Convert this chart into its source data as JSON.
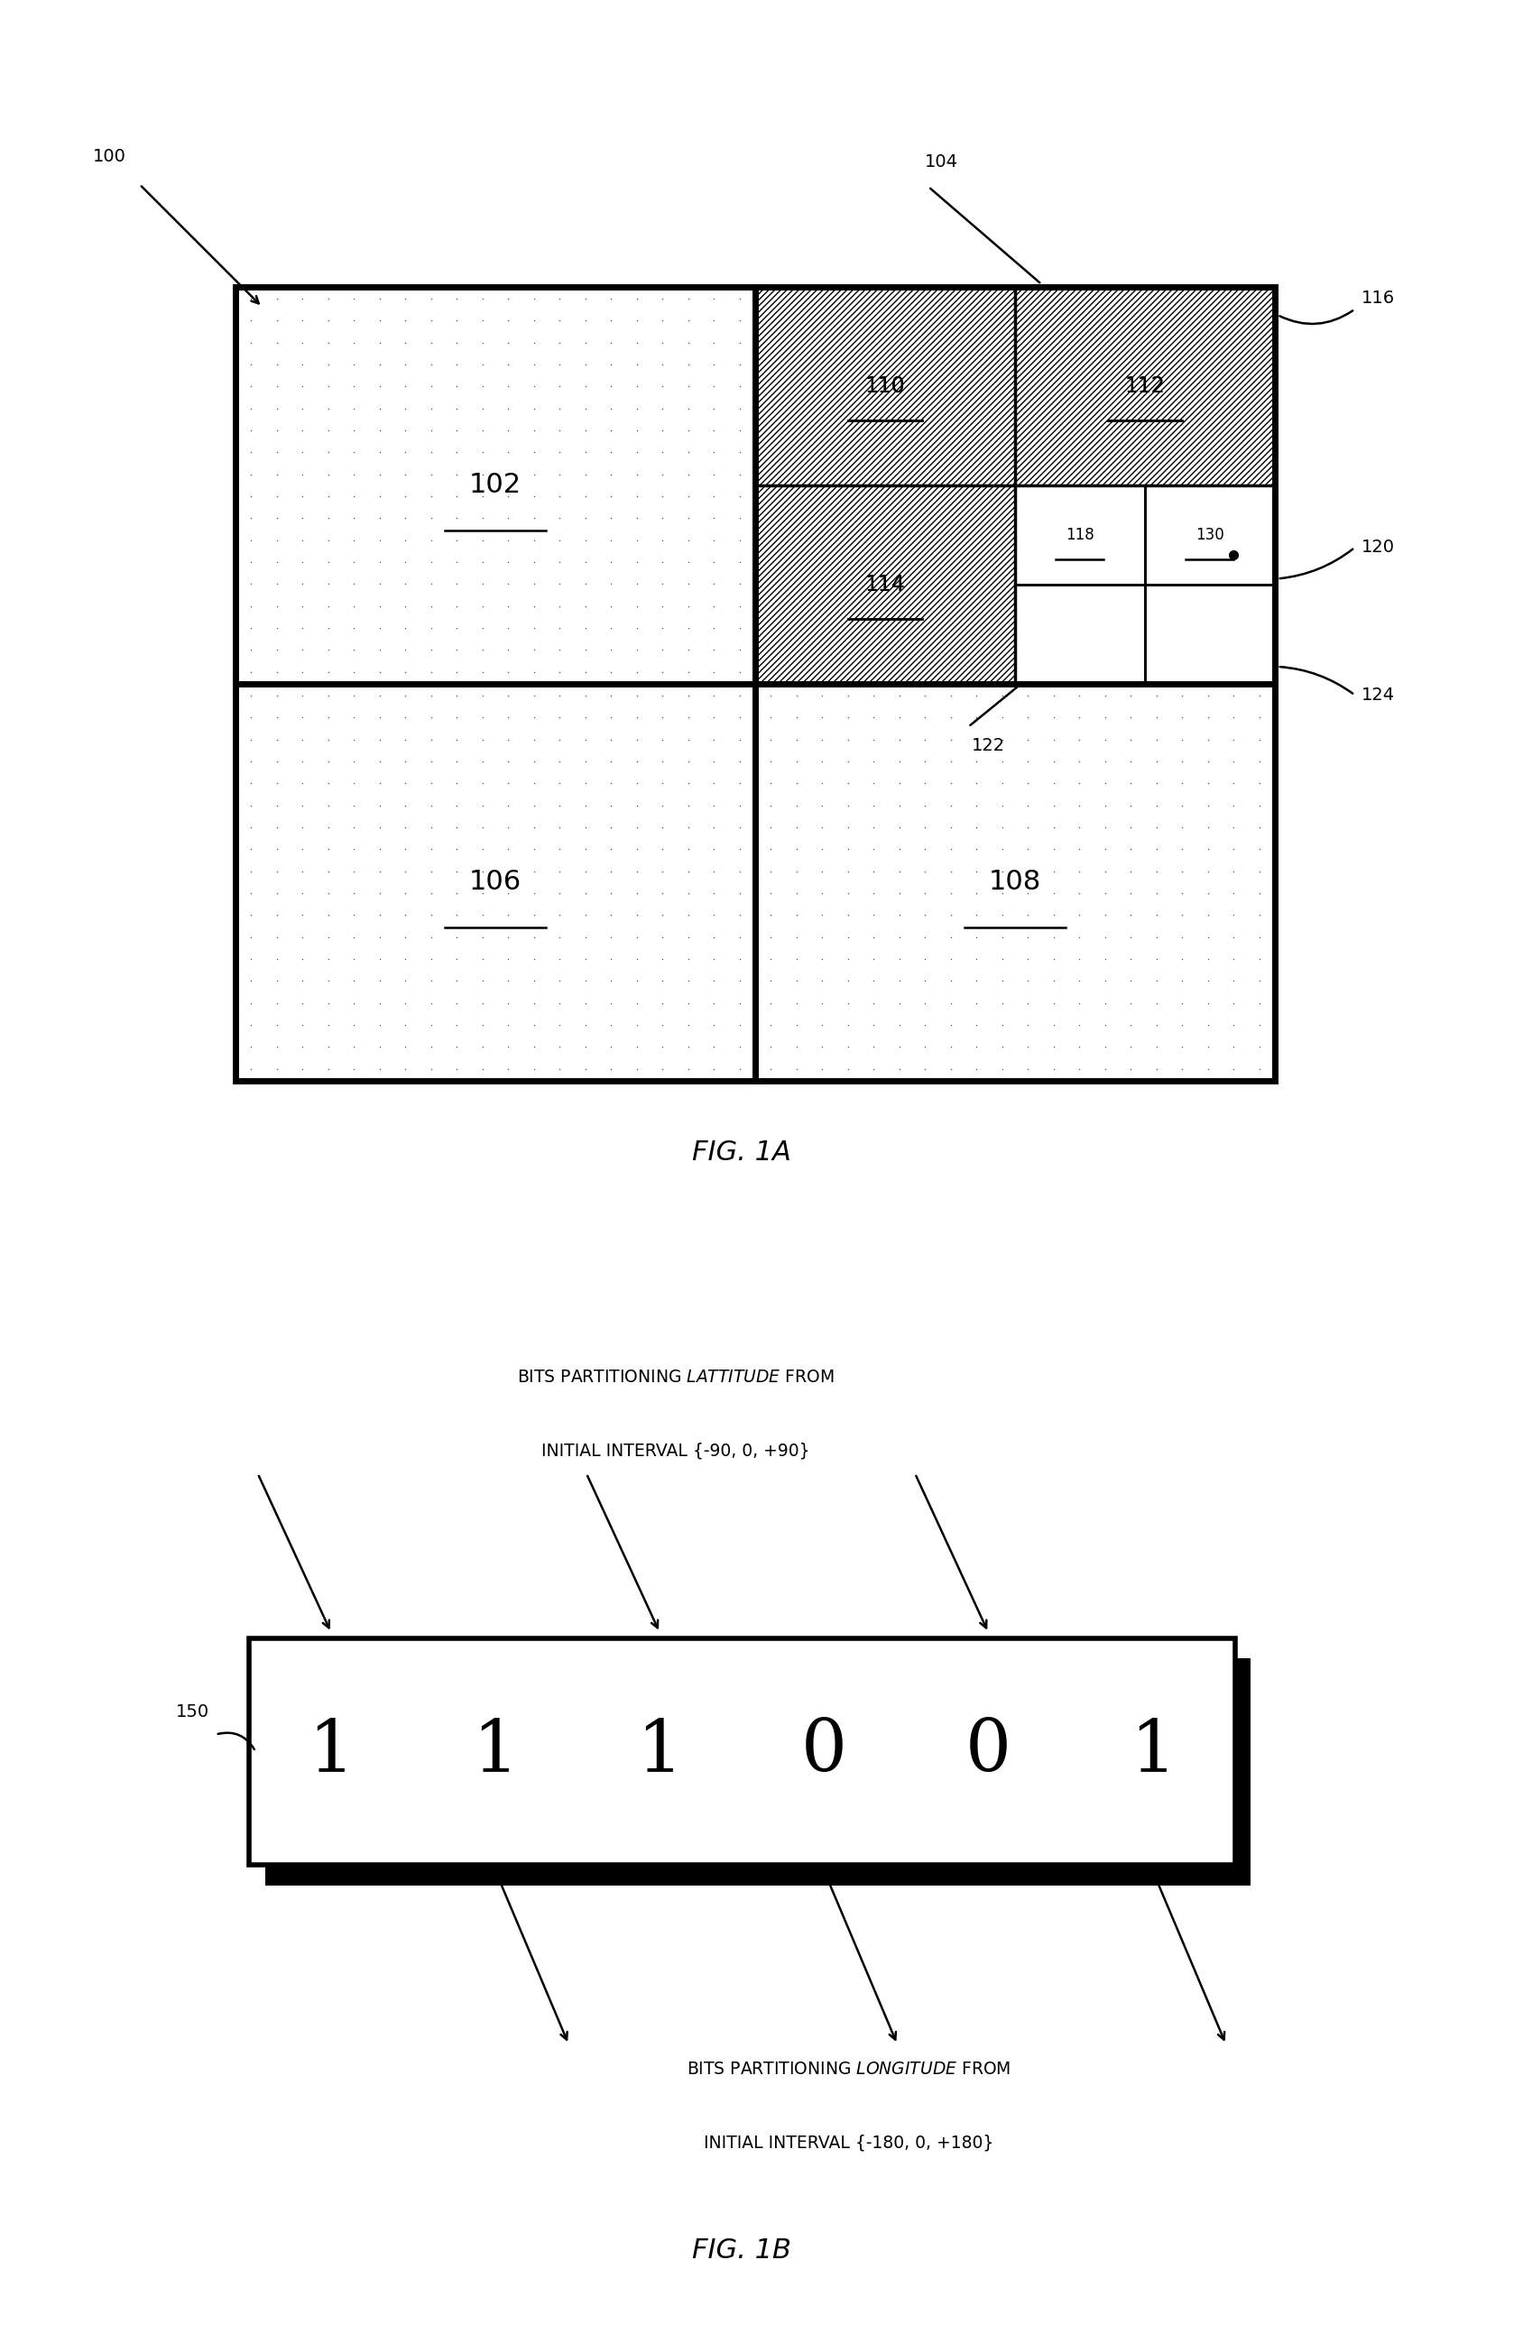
{
  "fig_width": 16.78,
  "fig_height": 25.97,
  "bg_color": "#ffffff",
  "fig1a_title": "FIG. 1A",
  "fig1b_title": "FIG. 1B",
  "bits": [
    "1",
    "1",
    "1",
    "0",
    "0",
    "1"
  ],
  "lat_line1": "BITS PARTITIONING ",
  "lat_italic": "LATTITUDE",
  "lat_line1_end": " FROM",
  "lat_line2": "INITIAL INTERVAL {-90, 0, +90}",
  "lon_line1": "BITS PARTITIONING ",
  "lon_italic": "LONGITUDE",
  "lon_line1_end": " FROM",
  "lon_line2": "INITIAL INTERVAL {-180, 0, +180}",
  "label_150": "150"
}
